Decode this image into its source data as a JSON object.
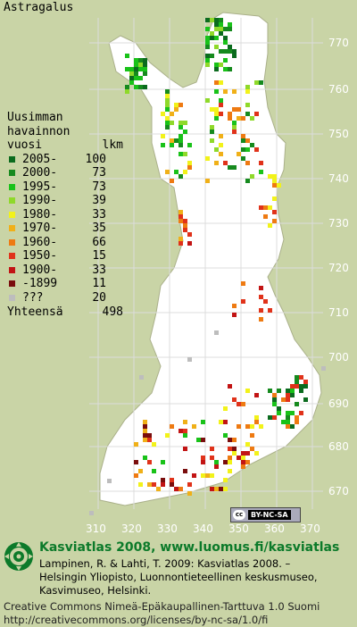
{
  "title": "Astragalus",
  "legend": {
    "header_lines": [
      "Uusimman",
      "havainnon"
    ],
    "col_year": "vuosi",
    "col_count": "lkm",
    "rows": [
      {
        "label": "2005-",
        "count": "100",
        "color": "#0b6b1e"
      },
      {
        "label": "2000-",
        "count": "73",
        "color": "#168a1e"
      },
      {
        "label": "1995-",
        "count": "73",
        "color": "#19c219"
      },
      {
        "label": "1990-",
        "count": "39",
        "color": "#8fd92a"
      },
      {
        "label": "1980-",
        "count": "33",
        "color": "#f2f21a"
      },
      {
        "label": "1970-",
        "count": "35",
        "color": "#f0b018"
      },
      {
        "label": "1960-",
        "count": "66",
        "color": "#ee7a12"
      },
      {
        "label": "1950-",
        "count": "15",
        "color": "#e0321a"
      },
      {
        "label": "1900-",
        "count": "33",
        "color": "#c21414"
      },
      {
        "label": "-1899",
        "count": "11",
        "color": "#7a0d0d"
      },
      {
        "label": "???",
        "count": "20",
        "color": "#bdbdbd"
      }
    ],
    "total_label": "Yhteensä",
    "total_count": "498"
  },
  "axes": {
    "y_labels": [
      "770",
      "760",
      "750",
      "740",
      "730",
      "720",
      "710",
      "700",
      "690",
      "680",
      "670"
    ],
    "x_labels": [
      "310",
      "320",
      "330",
      "340",
      "350",
      "360",
      "370"
    ]
  },
  "cc_badge": {
    "symbol": "cc",
    "text": "BY-NC-SA"
  },
  "footer": {
    "headline": "Kasviatlas 2008, www.luomus.fi/kasviatlas",
    "citation_lines": [
      "Lampinen, R. & Lahti, T. 2009: Kasviatlas 2008. –",
      "Helsingin Yliopisto, Luonnontieteellinen keskusmuseo,",
      "Kasvimuseo, Helsinki."
    ],
    "license_lines": [
      "Creative Commons Nimeä-Epäkaupallinen-Tarttuva 1.0 Suomi",
      "http://creativecommons.org/licenses/by-nc-sa/1.0/fi"
    ]
  },
  "colors": {
    "land": "#ffffff",
    "outside": "#c9d4a6",
    "grid": "#dcdcdc",
    "headline": "#0c7a2a"
  }
}
